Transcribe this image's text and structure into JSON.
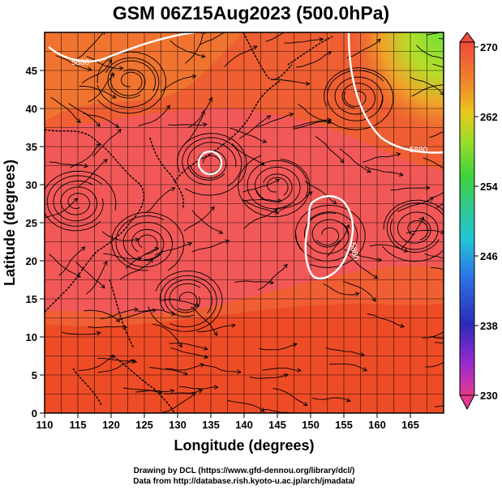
{
  "title": "GSM 06Z15Aug2023 (500.0hPa)",
  "axes": {
    "xlabel": "Longitude (degrees)",
    "ylabel": "Latitude  (degrees)",
    "x_ticks": [
      "110",
      "115",
      "120",
      "125",
      "130",
      "135",
      "140",
      "145",
      "150",
      "155",
      "160",
      "165"
    ],
    "y_ticks": [
      "0",
      "5",
      "10",
      "15",
      "20",
      "25",
      "30",
      "35",
      "40",
      "45"
    ],
    "x_range": [
      110,
      170
    ],
    "y_range": [
      0,
      50
    ]
  },
  "colorbar": {
    "labels": [
      "270",
      "262",
      "254",
      "246",
      "238",
      "230"
    ],
    "range": [
      230,
      270
    ],
    "colors": [
      "#e33a8f",
      "#9a2ad0",
      "#2b2bb8",
      "#2d76e6",
      "#22c4d8",
      "#35c98a",
      "#3fd23c",
      "#9bdc2a",
      "#e9c81e",
      "#f0892a",
      "#ee5a3a",
      "#f05a5a"
    ]
  },
  "contours": {
    "label": "5880"
  },
  "credits": {
    "line1": "Drawing by DCL (https://www.gfd-dennou.org/library/dcl/)",
    "line2": "Data from http://database.rish.kyoto-u.ac.jp/arch/jmadata/"
  }
}
